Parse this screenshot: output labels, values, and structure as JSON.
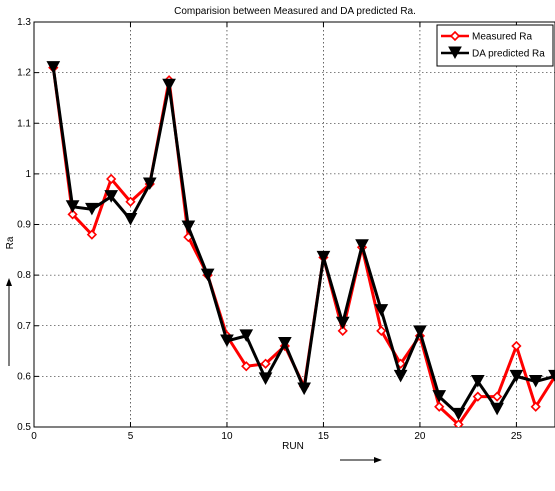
{
  "chart_data": {
    "type": "line",
    "title": "Comparision between Measured and DA predicted Ra.",
    "xlabel": "RUN",
    "ylabel": "Ra",
    "xlim": [
      0,
      27
    ],
    "ylim": [
      0.5,
      1.3
    ],
    "x_ticks": [
      0,
      5,
      10,
      15,
      20,
      25
    ],
    "y_ticks": [
      0.5,
      0.6,
      0.7,
      0.8,
      0.9,
      1,
      1.1,
      1.2,
      1.3
    ],
    "y_tick_labels": [
      "0.5",
      "0.6",
      "0.7",
      "0.8",
      "0.9",
      "1",
      "1.1",
      "1.2",
      "1.3"
    ],
    "grid": true,
    "legend_position": "top-right",
    "x": [
      1,
      2,
      3,
      4,
      5,
      6,
      7,
      8,
      9,
      10,
      11,
      12,
      13,
      14,
      15,
      16,
      17,
      18,
      19,
      20,
      21,
      22,
      23,
      24,
      25,
      26,
      27
    ],
    "series": [
      {
        "name": "Measured Ra",
        "color": "#ff0000",
        "marker": "diamond",
        "values": [
          1.21,
          0.92,
          0.88,
          0.99,
          0.945,
          0.98,
          1.185,
          0.875,
          0.8,
          0.68,
          0.62,
          0.625,
          0.66,
          0.58,
          0.835,
          0.69,
          0.855,
          0.69,
          0.625,
          0.68,
          0.54,
          0.505,
          0.56,
          0.56,
          0.66,
          0.54,
          0.6
        ]
      },
      {
        "name": "DA predicted Ra",
        "color": "#000000",
        "marker": "triangle-down",
        "values": [
          1.21,
          0.935,
          0.93,
          0.955,
          0.91,
          0.98,
          1.175,
          0.895,
          0.8,
          0.67,
          0.68,
          0.595,
          0.665,
          0.575,
          0.835,
          0.705,
          0.858,
          0.73,
          0.6,
          0.688,
          0.56,
          0.525,
          0.59,
          0.535,
          0.6,
          0.59,
          0.6
        ]
      }
    ]
  }
}
